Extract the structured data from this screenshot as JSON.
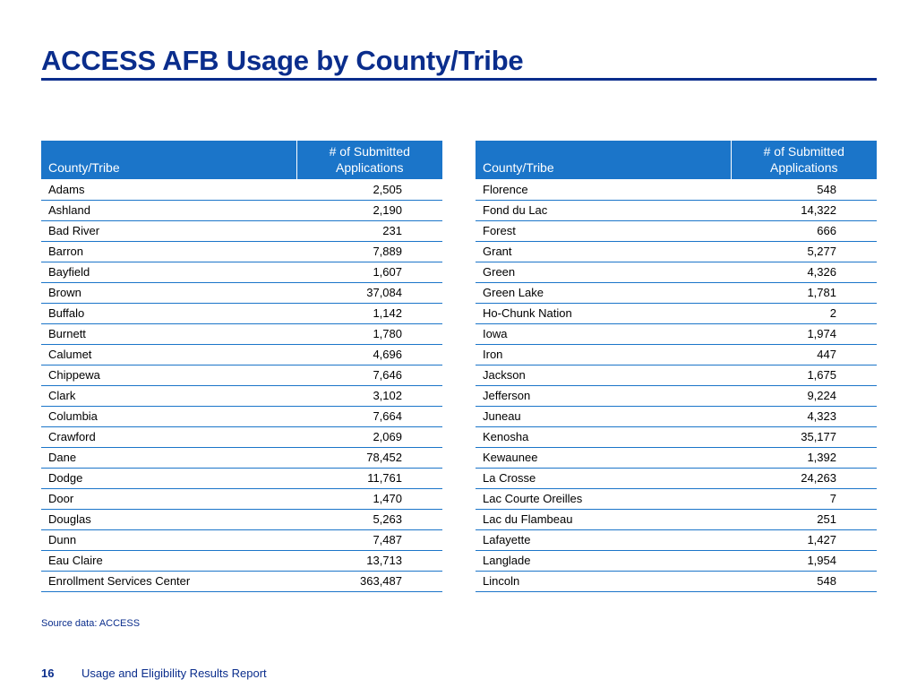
{
  "page": {
    "title": "ACCESS AFB Usage by County/Tribe",
    "source_note": "Source data: ACCESS",
    "page_number": "16",
    "report_title": "Usage and Eligibility Results Report"
  },
  "colors": {
    "title_blue": "#0a2d8c",
    "header_blue": "#1b75c9",
    "row_rule_blue": "#1b75c9"
  },
  "tables": {
    "left": {
      "headers": {
        "name": "County/Tribe",
        "count_line1": "# of Submitted",
        "count_line2": "Applications"
      },
      "rows": [
        {
          "name": "Adams",
          "count": "2,505"
        },
        {
          "name": "Ashland",
          "count": "2,190"
        },
        {
          "name": "Bad River",
          "count": "231"
        },
        {
          "name": "Barron",
          "count": "7,889"
        },
        {
          "name": "Bayfield",
          "count": "1,607"
        },
        {
          "name": "Brown",
          "count": "37,084"
        },
        {
          "name": "Buffalo",
          "count": "1,142"
        },
        {
          "name": "Burnett",
          "count": "1,780"
        },
        {
          "name": "Calumet",
          "count": "4,696"
        },
        {
          "name": "Chippewa",
          "count": "7,646"
        },
        {
          "name": "Clark",
          "count": "3,102"
        },
        {
          "name": "Columbia",
          "count": "7,664"
        },
        {
          "name": "Crawford",
          "count": "2,069"
        },
        {
          "name": "Dane",
          "count": "78,452"
        },
        {
          "name": "Dodge",
          "count": "11,761"
        },
        {
          "name": "Door",
          "count": "1,470"
        },
        {
          "name": "Douglas",
          "count": "5,263"
        },
        {
          "name": "Dunn",
          "count": "7,487"
        },
        {
          "name": "Eau Claire",
          "count": "13,713"
        },
        {
          "name": "Enrollment Services Center",
          "count": "363,487"
        }
      ]
    },
    "right": {
      "headers": {
        "name": "County/Tribe",
        "count_line1": "# of Submitted",
        "count_line2": "Applications"
      },
      "rows": [
        {
          "name": "Florence",
          "count": "548"
        },
        {
          "name": "Fond du Lac",
          "count": "14,322"
        },
        {
          "name": "Forest",
          "count": "666"
        },
        {
          "name": "Grant",
          "count": "5,277"
        },
        {
          "name": "Green",
          "count": "4,326"
        },
        {
          "name": "Green Lake",
          "count": "1,781"
        },
        {
          "name": "Ho-Chunk Nation",
          "count": "2"
        },
        {
          "name": "Iowa",
          "count": "1,974"
        },
        {
          "name": "Iron",
          "count": "447"
        },
        {
          "name": "Jackson",
          "count": "1,675"
        },
        {
          "name": "Jefferson",
          "count": "9,224"
        },
        {
          "name": "Juneau",
          "count": "4,323"
        },
        {
          "name": "Kenosha",
          "count": "35,177"
        },
        {
          "name": "Kewaunee",
          "count": "1,392"
        },
        {
          "name": "La Crosse",
          "count": "24,263"
        },
        {
          "name": "Lac Courte Oreilles",
          "count": "7"
        },
        {
          "name": "Lac du Flambeau",
          "count": "251"
        },
        {
          "name": "Lafayette",
          "count": "1,427"
        },
        {
          "name": "Langlade",
          "count": "1,954"
        },
        {
          "name": "Lincoln",
          "count": "548"
        }
      ]
    }
  }
}
